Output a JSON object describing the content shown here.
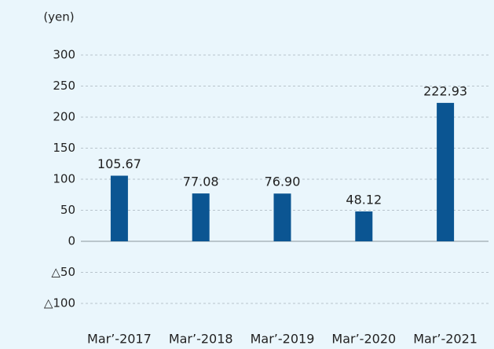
{
  "chart_data": {
    "type": "bar",
    "y_axis_label": "(yen)",
    "categories": [
      "Mar’-2017",
      "Mar’-2018",
      "Mar’-2019",
      "Mar’-2020",
      "Mar’-2021"
    ],
    "values": [
      105.67,
      77.08,
      76.9,
      48.12,
      222.93
    ],
    "value_labels": [
      "105.67",
      "77.08",
      "76.90",
      "48.12",
      "222.93"
    ],
    "color": "#0b5592",
    "ylim": [
      -100,
      300
    ],
    "yticks": [
      {
        "value": -100,
        "label": "△100"
      },
      {
        "value": -50,
        "label": "△50"
      },
      0,
      50,
      100,
      150,
      200,
      250,
      300
    ],
    "grid": true
  }
}
